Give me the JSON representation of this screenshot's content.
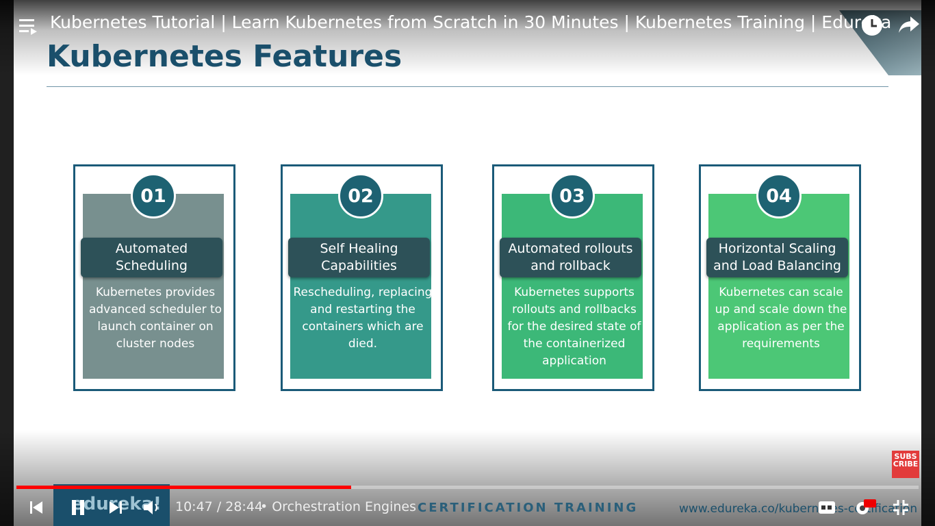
{
  "video": {
    "title": "Kubernetes Tutorial | Learn Kubernetes from Scratch in 30 Minutes | Kubernetes Training | Edureka",
    "time": "10:47 / 28:44",
    "chapter": "Orchestration Engines"
  },
  "slide": {
    "title": "Kubernetes Features",
    "features": [
      {
        "number": "01",
        "title": "Automated Scheduling",
        "text": "Kubernetes provides advanced scheduler to launch container on cluster nodes"
      },
      {
        "number": "02",
        "title": "Self Healing Capabilities",
        "text": "Rescheduling, replacing and restarting the containers which are died."
      },
      {
        "number": "03",
        "title": "Automated rollouts and rollback",
        "text": "Kubernetes supports rollouts and rollbacks for the desired state of the containerized application"
      },
      {
        "number": "04",
        "title": "Horizontal Scaling and Load Balancing",
        "text": "Kubernetes can scale up and scale down the application as per the requirements"
      }
    ],
    "footer_logo": "edureka!",
    "footer_tagline": "CERTIFICATION TRAINING",
    "footer_url": "www.edureka.co/kubernetes-certification",
    "subscribe_top": "SUBS",
    "subscribe_bottom": "CRIBE"
  }
}
